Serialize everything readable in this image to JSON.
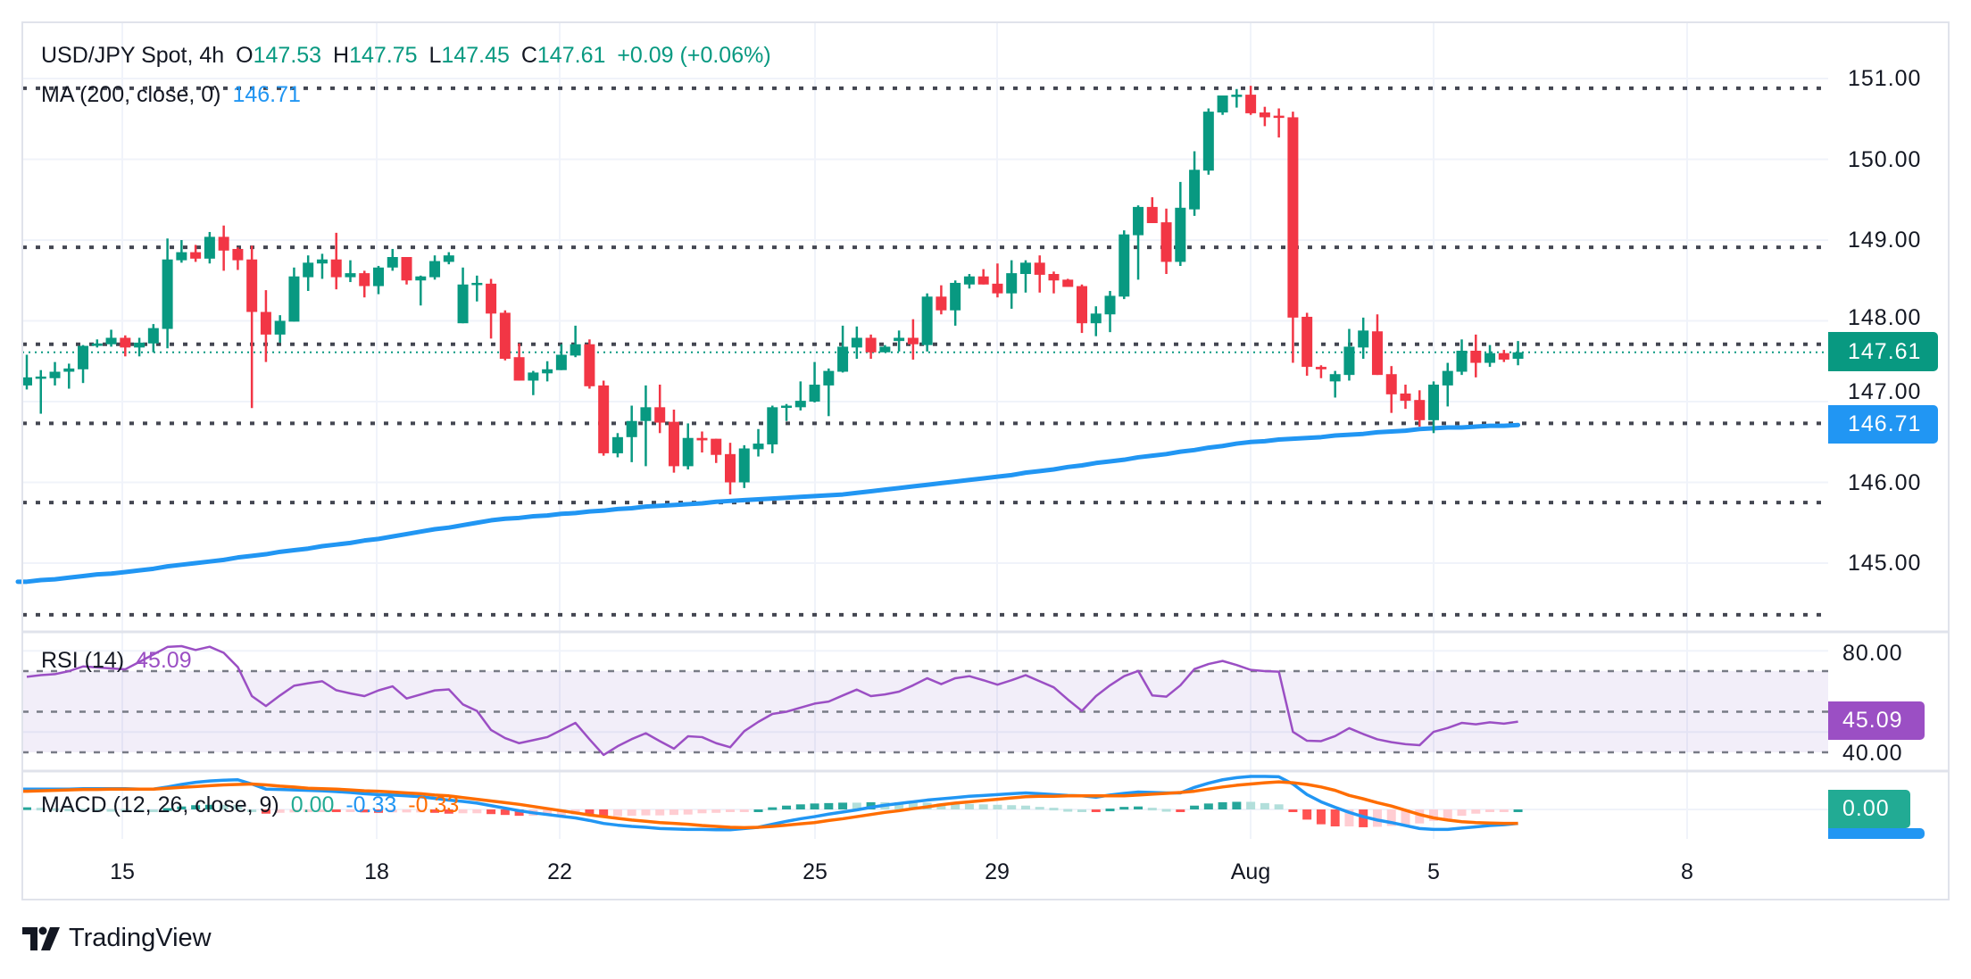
{
  "header": {
    "symbol": "USD/JPY Spot, 4h",
    "o_label": "O",
    "o": "147.53",
    "h_label": "H",
    "h": "147.75",
    "l_label": "L",
    "l": "147.45",
    "c_label": "C",
    "c": "147.61",
    "change": "+0.09 (+0.06%)"
  },
  "ma_legend": {
    "label": "MA (200, close, 0)",
    "value": "146.71"
  },
  "rsi_legend": {
    "label": "RSI (14)",
    "value": "45.09"
  },
  "macd_legend": {
    "label": "MACD (12, 26, close, 9)",
    "hist": "0.00",
    "macd": "-0.33",
    "signal": "-0.33"
  },
  "price_axis": {
    "ticks": [
      "151.00",
      "150.00",
      "149.00",
      "148.00",
      "147.00",
      "146.00",
      "145.00"
    ],
    "last_price": "147.61",
    "ma_price": "146.71"
  },
  "rsi_axis": {
    "ticks": [
      "80.00",
      "40.00"
    ],
    "last": "45.09"
  },
  "macd_axis": {
    "last": "0.00"
  },
  "time_axis": [
    "15",
    "18",
    "22",
    "25",
    "29",
    "Aug",
    "5",
    "8"
  ],
  "brand": "TradingView",
  "colors": {
    "up": "#089981",
    "down": "#f23645",
    "ma": "#2196f3",
    "rsi": "#9b4fc4",
    "macd": "#2196f3",
    "signal": "#ff6d00",
    "levels": "#434651",
    "hist_up_strong": "#26a69a",
    "hist_up_weak": "#b2dfdb",
    "hist_down_strong": "#ff5252",
    "hist_down_weak": "#ffcdd2"
  },
  "chart_data": {
    "type": "candlestick",
    "timeframe": "4h",
    "ylim": [
      144.1,
      151.7
    ],
    "grid": true,
    "levels": [
      150.88,
      148.91,
      147.71,
      146.73,
      145.75,
      144.36
    ],
    "candles": [
      [
        147.2,
        147.58,
        147.15,
        147.3
      ],
      [
        147.29,
        147.39,
        146.85,
        147.31
      ],
      [
        147.29,
        147.49,
        147.2,
        147.37
      ],
      [
        147.37,
        147.47,
        147.16,
        147.41
      ],
      [
        147.4,
        147.7,
        147.23,
        147.69
      ],
      [
        147.69,
        147.77,
        147.67,
        147.72
      ],
      [
        147.71,
        147.89,
        147.68,
        147.79
      ],
      [
        147.79,
        147.82,
        147.56,
        147.67
      ],
      [
        147.67,
        147.79,
        147.56,
        147.73
      ],
      [
        147.72,
        147.96,
        147.61,
        147.91
      ],
      [
        147.9,
        149.02,
        147.66,
        148.76
      ],
      [
        148.75,
        149.0,
        148.72,
        148.85
      ],
      [
        148.85,
        148.94,
        148.73,
        148.77
      ],
      [
        148.77,
        149.1,
        148.71,
        149.04
      ],
      [
        149.04,
        149.18,
        148.62,
        148.87
      ],
      [
        148.89,
        148.91,
        148.63,
        148.75
      ],
      [
        148.76,
        148.93,
        146.92,
        148.11
      ],
      [
        148.11,
        148.38,
        147.49,
        147.83
      ],
      [
        147.83,
        148.07,
        147.73,
        148.0
      ],
      [
        147.99,
        148.66,
        147.99,
        148.55
      ],
      [
        148.54,
        148.81,
        148.37,
        148.72
      ],
      [
        148.71,
        148.83,
        148.52,
        148.76
      ],
      [
        148.76,
        149.09,
        148.39,
        148.54
      ],
      [
        148.54,
        148.75,
        148.48,
        148.59
      ],
      [
        148.59,
        148.62,
        148.29,
        148.43
      ],
      [
        148.43,
        148.68,
        148.33,
        148.66
      ],
      [
        148.66,
        148.89,
        148.62,
        148.79
      ],
      [
        148.79,
        148.79,
        148.45,
        148.5
      ],
      [
        148.5,
        148.56,
        148.19,
        148.55
      ],
      [
        148.54,
        148.81,
        148.51,
        148.74
      ],
      [
        148.73,
        148.85,
        148.7,
        148.81
      ],
      [
        147.97,
        148.66,
        147.97,
        148.45
      ],
      [
        148.45,
        148.56,
        148.24,
        148.47
      ],
      [
        148.46,
        148.52,
        147.78,
        148.09
      ],
      [
        148.1,
        148.13,
        147.51,
        147.53
      ],
      [
        147.55,
        147.72,
        147.26,
        147.26
      ],
      [
        147.26,
        147.38,
        147.08,
        147.36
      ],
      [
        147.35,
        147.5,
        147.25,
        147.4
      ],
      [
        147.39,
        147.71,
        147.39,
        147.58
      ],
      [
        147.57,
        147.94,
        147.55,
        147.71
      ],
      [
        147.71,
        147.77,
        147.16,
        147.19
      ],
      [
        147.2,
        147.26,
        146.33,
        146.36
      ],
      [
        146.36,
        146.61,
        146.31,
        146.56
      ],
      [
        146.56,
        146.95,
        146.25,
        146.76
      ],
      [
        146.76,
        147.2,
        146.2,
        146.93
      ],
      [
        146.93,
        147.21,
        146.61,
        146.74
      ],
      [
        146.75,
        146.9,
        146.12,
        146.2
      ],
      [
        146.2,
        146.73,
        146.16,
        146.55
      ],
      [
        146.55,
        146.63,
        146.37,
        146.52
      ],
      [
        146.54,
        146.54,
        146.24,
        146.34
      ],
      [
        146.35,
        146.49,
        145.85,
        146.0
      ],
      [
        146.0,
        146.46,
        145.93,
        146.42
      ],
      [
        146.41,
        146.66,
        146.32,
        146.48
      ],
      [
        146.47,
        146.95,
        146.36,
        146.93
      ],
      [
        146.93,
        146.97,
        146.76,
        146.95
      ],
      [
        146.93,
        147.25,
        146.89,
        147.01
      ],
      [
        147.0,
        147.49,
        146.99,
        147.21
      ],
      [
        147.2,
        147.41,
        146.82,
        147.38
      ],
      [
        147.37,
        147.94,
        147.36,
        147.68
      ],
      [
        147.67,
        147.93,
        147.53,
        147.79
      ],
      [
        147.79,
        147.83,
        147.53,
        147.61
      ],
      [
        147.61,
        147.7,
        147.61,
        147.68
      ],
      [
        147.75,
        147.88,
        147.62,
        147.79
      ],
      [
        147.79,
        148.02,
        147.52,
        147.71
      ],
      [
        147.7,
        148.34,
        147.62,
        148.3
      ],
      [
        148.3,
        148.44,
        148.08,
        148.13
      ],
      [
        148.13,
        148.5,
        147.94,
        148.47
      ],
      [
        148.45,
        148.58,
        148.4,
        148.55
      ],
      [
        148.55,
        148.64,
        148.45,
        148.45
      ],
      [
        148.46,
        148.71,
        148.29,
        148.34
      ],
      [
        148.34,
        148.75,
        148.15,
        148.59
      ],
      [
        148.58,
        148.75,
        148.35,
        148.72
      ],
      [
        148.72,
        148.81,
        148.35,
        148.57
      ],
      [
        148.58,
        148.61,
        148.34,
        148.5
      ],
      [
        148.51,
        148.52,
        148.42,
        148.42
      ],
      [
        148.43,
        148.45,
        147.85,
        147.97
      ],
      [
        147.97,
        148.18,
        147.81,
        148.09
      ],
      [
        148.08,
        148.37,
        147.86,
        148.31
      ],
      [
        148.3,
        149.12,
        148.27,
        149.07
      ],
      [
        149.06,
        149.43,
        148.51,
        149.41
      ],
      [
        149.41,
        149.53,
        149.21,
        149.21
      ],
      [
        149.22,
        149.39,
        148.58,
        148.73
      ],
      [
        148.73,
        149.72,
        148.68,
        149.4
      ],
      [
        149.38,
        150.1,
        149.3,
        149.87
      ],
      [
        149.86,
        150.63,
        149.81,
        150.59
      ],
      [
        150.58,
        150.79,
        150.55,
        150.79
      ],
      [
        150.78,
        150.87,
        150.64,
        150.8
      ],
      [
        150.8,
        150.91,
        150.55,
        150.57
      ],
      [
        150.58,
        150.65,
        150.41,
        150.52
      ],
      [
        150.54,
        150.63,
        150.27,
        150.52
      ],
      [
        150.52,
        150.59,
        147.48,
        148.04
      ],
      [
        148.05,
        148.1,
        147.32,
        147.43
      ],
      [
        147.43,
        147.45,
        147.29,
        147.4
      ],
      [
        147.25,
        147.38,
        147.05,
        147.34
      ],
      [
        147.33,
        147.9,
        147.26,
        147.68
      ],
      [
        147.67,
        148.04,
        147.53,
        147.88
      ],
      [
        147.87,
        148.08,
        147.33,
        147.33
      ],
      [
        147.34,
        147.44,
        146.86,
        147.09
      ],
      [
        147.1,
        147.21,
        146.91,
        147.01
      ],
      [
        147.02,
        147.14,
        146.69,
        146.77
      ],
      [
        146.77,
        147.25,
        146.61,
        147.21
      ],
      [
        147.2,
        147.48,
        146.94,
        147.38
      ],
      [
        147.37,
        147.77,
        147.33,
        147.63
      ],
      [
        147.63,
        147.83,
        147.3,
        147.48
      ],
      [
        147.48,
        147.7,
        147.43,
        147.6
      ],
      [
        147.6,
        147.64,
        147.49,
        147.52
      ],
      [
        147.53,
        147.75,
        147.45,
        147.61
      ]
    ],
    "ma200": [
      144.77,
      144.79,
      144.8,
      144.82,
      144.84,
      144.86,
      144.87,
      144.89,
      144.91,
      144.93,
      144.96,
      144.98,
      145.0,
      145.02,
      145.04,
      145.07,
      145.09,
      145.11,
      145.14,
      145.16,
      145.18,
      145.21,
      145.23,
      145.25,
      145.28,
      145.3,
      145.33,
      145.36,
      145.39,
      145.42,
      145.44,
      145.47,
      145.5,
      145.53,
      145.55,
      145.56,
      145.58,
      145.59,
      145.61,
      145.62,
      145.64,
      145.65,
      145.67,
      145.68,
      145.7,
      145.71,
      145.72,
      145.73,
      145.74,
      145.76,
      145.77,
      145.78,
      145.79,
      145.8,
      145.81,
      145.82,
      145.83,
      145.84,
      145.85,
      145.87,
      145.89,
      145.91,
      145.93,
      145.95,
      145.97,
      145.99,
      146.01,
      146.03,
      146.05,
      146.07,
      146.09,
      146.12,
      146.14,
      146.16,
      146.19,
      146.21,
      146.24,
      146.26,
      146.28,
      146.31,
      146.33,
      146.35,
      146.38,
      146.4,
      146.43,
      146.45,
      146.48,
      146.5,
      146.51,
      146.53,
      146.54,
      146.55,
      146.56,
      146.58,
      146.59,
      146.6,
      146.62,
      146.63,
      146.64,
      146.66,
      146.67,
      146.68,
      146.68,
      146.69,
      146.7,
      146.7,
      146.71
    ],
    "rsi": {
      "bands": [
        70,
        50,
        30
      ],
      "values": [
        67.2,
        68,
        68.5,
        70,
        72.3,
        71.8,
        71.3,
        70.9,
        74.5,
        78.2,
        81.9,
        82.3,
        80.4,
        82,
        79,
        72,
        57.7,
        52.8,
        58,
        62.8,
        64,
        65,
        60.6,
        59,
        57.7,
        60.5,
        62.5,
        56.5,
        58.5,
        60.5,
        61,
        53.6,
        50.4,
        41,
        37,
        34.5,
        36,
        37.5,
        41,
        44.5,
        36.4,
        28.7,
        33,
        36.5,
        39.4,
        35.5,
        31.8,
        37.9,
        37.5,
        34.5,
        32.5,
        40.4,
        45,
        48.9,
        50,
        52,
        54,
        55,
        58,
        60.9,
        57.7,
        58.5,
        59.9,
        63,
        66.5,
        63.6,
        66.5,
        67.5,
        65.5,
        63.3,
        65.5,
        68,
        65,
        62,
        56,
        50.4,
        57.7,
        63,
        67.5,
        70.1,
        58,
        57.4,
        63,
        71,
        73.5,
        75,
        73,
        70.6,
        70,
        69.7,
        40.1,
        35.7,
        35.5,
        38,
        41.9,
        39,
        36.4,
        35,
        34,
        33.5,
        40.1,
        42,
        44.5,
        43.8,
        44.8,
        44.1,
        45.09
      ]
    },
    "macd": {
      "macd": [
        0.48,
        0.48,
        0.48,
        0.48,
        0.49,
        0.49,
        0.49,
        0.49,
        0.48,
        0.48,
        0.53,
        0.59,
        0.64,
        0.67,
        0.69,
        0.7,
        0.6,
        0.48,
        0.47,
        0.46,
        0.45,
        0.44,
        0.42,
        0.4,
        0.37,
        0.35,
        0.34,
        0.32,
        0.3,
        0.26,
        0.22,
        0.19,
        0.15,
        0.09,
        0.03,
        -0.03,
        -0.08,
        -0.12,
        -0.16,
        -0.2,
        -0.26,
        -0.33,
        -0.37,
        -0.4,
        -0.42,
        -0.45,
        -0.46,
        -0.47,
        -0.47,
        -0.48,
        -0.48,
        -0.45,
        -0.42,
        -0.35,
        -0.28,
        -0.22,
        -0.17,
        -0.11,
        -0.06,
        -0.01,
        0.05,
        0.1,
        0.14,
        0.18,
        0.22,
        0.25,
        0.28,
        0.31,
        0.33,
        0.35,
        0.37,
        0.39,
        0.37,
        0.35,
        0.33,
        0.32,
        0.29,
        0.34,
        0.38,
        0.41,
        0.4,
        0.39,
        0.39,
        0.52,
        0.62,
        0.7,
        0.75,
        0.78,
        0.78,
        0.77,
        0.6,
        0.35,
        0.18,
        0.05,
        -0.07,
        -0.17,
        -0.25,
        -0.31,
        -0.38,
        -0.45,
        -0.47,
        -0.47,
        -0.44,
        -0.41,
        -0.38,
        -0.36,
        -0.33
      ],
      "signal": [
        0.43,
        0.44,
        0.45,
        0.46,
        0.47,
        0.47,
        0.48,
        0.48,
        0.48,
        0.48,
        0.5,
        0.52,
        0.54,
        0.56,
        0.58,
        0.59,
        0.6,
        0.58,
        0.55,
        0.53,
        0.5,
        0.49,
        0.48,
        0.46,
        0.44,
        0.43,
        0.41,
        0.39,
        0.37,
        0.34,
        0.32,
        0.28,
        0.24,
        0.2,
        0.16,
        0.12,
        0.07,
        0.02,
        -0.03,
        -0.08,
        -0.13,
        -0.17,
        -0.21,
        -0.25,
        -0.28,
        -0.31,
        -0.33,
        -0.35,
        -0.38,
        -0.4,
        -0.42,
        -0.43,
        -0.42,
        -0.4,
        -0.37,
        -0.34,
        -0.31,
        -0.26,
        -0.22,
        -0.17,
        -0.12,
        -0.07,
        -0.03,
        0.02,
        0.06,
        0.11,
        0.15,
        0.18,
        0.21,
        0.24,
        0.27,
        0.3,
        0.31,
        0.31,
        0.32,
        0.32,
        0.32,
        0.32,
        0.32,
        0.34,
        0.36,
        0.38,
        0.4,
        0.43,
        0.48,
        0.53,
        0.57,
        0.6,
        0.63,
        0.65,
        0.63,
        0.59,
        0.53,
        0.45,
        0.33,
        0.25,
        0.16,
        0.08,
        -0.02,
        -0.12,
        -0.2,
        -0.25,
        -0.29,
        -0.31,
        -0.32,
        -0.33,
        -0.33
      ]
    }
  }
}
